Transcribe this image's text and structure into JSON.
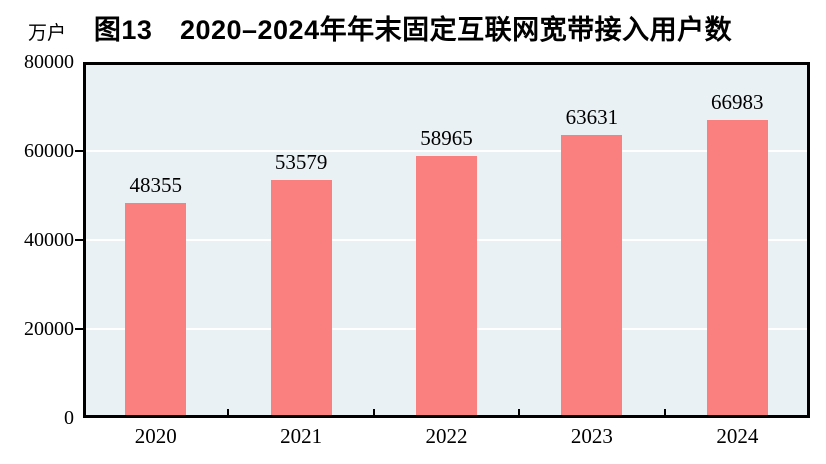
{
  "chart_data": {
    "type": "bar",
    "title": "图13　2020–2024年年末固定互联网宽带接入用户数",
    "unit_label": "万户",
    "categories": [
      "2020",
      "2021",
      "2022",
      "2023",
      "2024"
    ],
    "values": [
      48355,
      53579,
      58965,
      63631,
      66983
    ],
    "xlabel": "",
    "ylabel": "万户",
    "ylim": [
      0,
      80000
    ],
    "yticks": [
      0,
      20000,
      40000,
      60000,
      80000
    ],
    "grid": true,
    "gridline_levels": [
      20000,
      40000,
      60000
    ],
    "legend": "none",
    "show_data_labels": true,
    "colors": {
      "bar": "#fa8080",
      "plot_bg": "#e9f1f4",
      "grid": "#ffffff",
      "axis": "#000000",
      "text": "#000000"
    }
  }
}
